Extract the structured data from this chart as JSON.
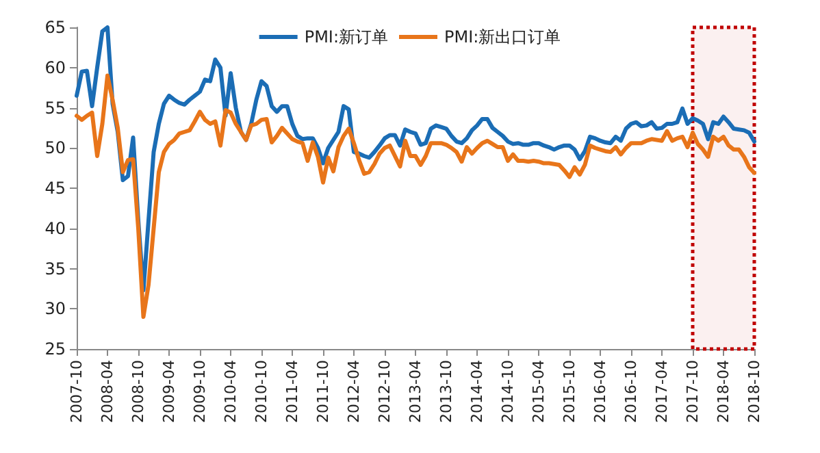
{
  "chart_data": {
    "type": "line",
    "x": [
      "2007-10",
      "2007-11",
      "2007-12",
      "2008-01",
      "2008-02",
      "2008-03",
      "2008-04",
      "2008-05",
      "2008-06",
      "2008-07",
      "2008-08",
      "2008-09",
      "2008-10",
      "2008-11",
      "2008-12",
      "2009-01",
      "2009-02",
      "2009-03",
      "2009-04",
      "2009-05",
      "2009-06",
      "2009-07",
      "2009-08",
      "2009-09",
      "2009-10",
      "2009-11",
      "2009-12",
      "2010-01",
      "2010-02",
      "2010-03",
      "2010-04",
      "2010-05",
      "2010-06",
      "2010-07",
      "2010-08",
      "2010-09",
      "2010-10",
      "2010-11",
      "2010-12",
      "2011-01",
      "2011-02",
      "2011-03",
      "2011-04",
      "2011-05",
      "2011-06",
      "2011-07",
      "2011-08",
      "2011-09",
      "2011-10",
      "2011-11",
      "2011-12",
      "2012-01",
      "2012-02",
      "2012-03",
      "2012-04",
      "2012-05",
      "2012-06",
      "2012-07",
      "2012-08",
      "2012-09",
      "2012-10",
      "2012-11",
      "2012-12",
      "2013-01",
      "2013-02",
      "2013-03",
      "2013-04",
      "2013-05",
      "2013-06",
      "2013-07",
      "2013-08",
      "2013-09",
      "2013-10",
      "2013-11",
      "2013-12",
      "2014-01",
      "2014-02",
      "2014-03",
      "2014-04",
      "2014-05",
      "2014-06",
      "2014-07",
      "2014-08",
      "2014-09",
      "2014-10",
      "2014-11",
      "2014-12",
      "2015-01",
      "2015-02",
      "2015-03",
      "2015-04",
      "2015-05",
      "2015-06",
      "2015-07",
      "2015-08",
      "2015-09",
      "2015-10",
      "2015-11",
      "2015-12",
      "2016-01",
      "2016-02",
      "2016-03",
      "2016-04",
      "2016-05",
      "2016-06",
      "2016-07",
      "2016-08",
      "2016-09",
      "2016-10",
      "2016-11",
      "2016-12",
      "2017-01",
      "2017-02",
      "2017-03",
      "2017-04",
      "2017-05",
      "2017-06",
      "2017-07",
      "2017-08",
      "2017-09",
      "2017-10",
      "2017-11",
      "2017-12",
      "2018-01",
      "2018-02",
      "2018-03",
      "2018-04",
      "2018-05",
      "2018-06",
      "2018-07",
      "2018-08",
      "2018-09",
      "2018-10"
    ],
    "series": [
      {
        "name": "PMI:新订单",
        "color": "#1b6db5",
        "values": [
          56.5,
          59.5,
          59.6,
          55.2,
          60,
          64.5,
          65,
          55.5,
          52,
          46,
          46.5,
          51.3,
          41,
          32.3,
          41,
          49.5,
          53,
          55.5,
          56.5,
          56,
          55.6,
          55.4,
          56,
          56.5,
          57,
          58.5,
          58.3,
          61,
          60,
          54,
          59.3,
          55,
          52,
          51,
          53,
          56,
          58.3,
          57.7,
          55.2,
          54.5,
          55.2,
          55.2,
          53,
          51.5,
          51.1,
          51.2,
          51.2,
          50,
          48.1,
          50,
          51,
          52,
          55.2,
          54.8,
          49.5,
          49.3,
          49,
          48.8,
          49.5,
          50.3,
          51.2,
          51.6,
          51.6,
          50.3,
          52.3,
          52,
          51.8,
          50.4,
          50.6,
          52.4,
          52.8,
          52.6,
          52.4,
          51.5,
          50.8,
          50.6,
          51.2,
          52.2,
          52.8,
          53.6,
          53.6,
          52.5,
          52,
          51.5,
          50.8,
          50.5,
          50.6,
          50.4,
          50.4,
          50.6,
          50.6,
          50.3,
          50.1,
          49.8,
          50.1,
          50.3,
          50.3,
          49.8,
          48.6,
          49.6,
          51.4,
          51.2,
          50.9,
          50.7,
          50.6,
          51.4,
          50.9,
          52.4,
          53,
          53.2,
          52.7,
          52.8,
          53.2,
          52.4,
          52.5,
          53,
          53,
          53.2,
          54.9,
          53,
          53.7,
          53.4,
          53,
          51.1,
          53.2,
          53,
          53.9,
          53.2,
          52.4,
          52.3,
          52.2,
          51.9,
          50.8
        ]
      },
      {
        "name": "PMI:新出口订单",
        "color": "#e8751a",
        "values": [
          54,
          53.5,
          54,
          54.4,
          49,
          53,
          59,
          56,
          52.5,
          47,
          48.5,
          48.6,
          40,
          29,
          33,
          40,
          47,
          49.5,
          50.5,
          51,
          51.8,
          52,
          52.2,
          53.3,
          54.5,
          53.5,
          53,
          53.3,
          50.3,
          54.7,
          54.4,
          53,
          52,
          51,
          52.8,
          53,
          53.5,
          53.6,
          50.7,
          51.5,
          52.5,
          51.8,
          51.1,
          50.8,
          50.6,
          48.4,
          50.7,
          48.9,
          45.7,
          48.8,
          47.1,
          50.1,
          51.5,
          52.4,
          50.6,
          48.5,
          46.8,
          47,
          48,
          49.3,
          50,
          50.3,
          49,
          47.7,
          50.9,
          49,
          49,
          47.9,
          49,
          50.6,
          50.6,
          50.6,
          50.4,
          50,
          49.5,
          48.3,
          50.1,
          49.3,
          50,
          50.6,
          50.9,
          50.5,
          50.1,
          50.1,
          48.4,
          49.2,
          48.4,
          48.4,
          48.3,
          48.4,
          48.3,
          48.1,
          48.1,
          48,
          47.9,
          47.2,
          46.4,
          47.6,
          46.7,
          47.9,
          50.3,
          50,
          49.8,
          49.6,
          49.5,
          50.1,
          49.2,
          50,
          50.6,
          50.6,
          50.6,
          50.9,
          51.1,
          51,
          50.9,
          52.1,
          50.9,
          51.2,
          51.4,
          50.1,
          51.9,
          50.5,
          49.8,
          48.9,
          51.4,
          50.9,
          51.4,
          50.3,
          49.8,
          49.8,
          48.9,
          47.6,
          46.9
        ]
      }
    ],
    "xlim": [
      "2007-10",
      "2018-10"
    ],
    "xticks": [
      "2007-10",
      "2008-04",
      "2008-10",
      "2009-04",
      "2009-10",
      "2010-04",
      "2010-10",
      "2011-04",
      "2011-10",
      "2012-04",
      "2012-10",
      "2013-04",
      "2013-10",
      "2014-04",
      "2014-10",
      "2015-04",
      "2015-10",
      "2016-04",
      "2016-10",
      "2017-04",
      "2017-10",
      "2018-04",
      "2018-10"
    ],
    "ylim": [
      25,
      65
    ],
    "yticks": [
      25,
      30,
      35,
      40,
      45,
      50,
      55,
      60,
      65
    ],
    "bands": [
      {
        "axis": "x",
        "from": "2017-10",
        "to": "2018-10",
        "color": "#c00000"
      }
    ],
    "legend": "top",
    "grid": false,
    "marker": "none",
    "line_style": "solid"
  }
}
